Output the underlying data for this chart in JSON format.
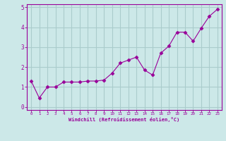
{
  "x": [
    0,
    1,
    2,
    3,
    4,
    5,
    6,
    7,
    8,
    9,
    10,
    11,
    12,
    13,
    14,
    15,
    16,
    17,
    18,
    19,
    20,
    21,
    22,
    23
  ],
  "y": [
    1.3,
    0.45,
    1.0,
    1.0,
    1.25,
    1.25,
    1.25,
    1.3,
    1.3,
    1.35,
    1.7,
    2.2,
    2.35,
    2.5,
    1.85,
    1.6,
    2.7,
    3.05,
    3.75,
    3.75,
    3.3,
    3.95,
    4.55,
    4.9
  ],
  "line_color": "#990099",
  "marker": "D",
  "marker_size": 2.5,
  "bg_color": "#cce8e8",
  "grid_color": "#aacccc",
  "xlabel": "Windchill (Refroidissement éolien,°C)",
  "xlabel_color": "#990099",
  "tick_color": "#990099",
  "spine_color": "#990099",
  "ylim": [
    -0.15,
    5.15
  ],
  "xlim": [
    -0.5,
    23.5
  ],
  "yticks": [
    0,
    1,
    2,
    3,
    4,
    5
  ],
  "xticks": [
    0,
    1,
    2,
    3,
    4,
    5,
    6,
    7,
    8,
    9,
    10,
    11,
    12,
    13,
    14,
    15,
    16,
    17,
    18,
    19,
    20,
    21,
    22,
    23
  ]
}
